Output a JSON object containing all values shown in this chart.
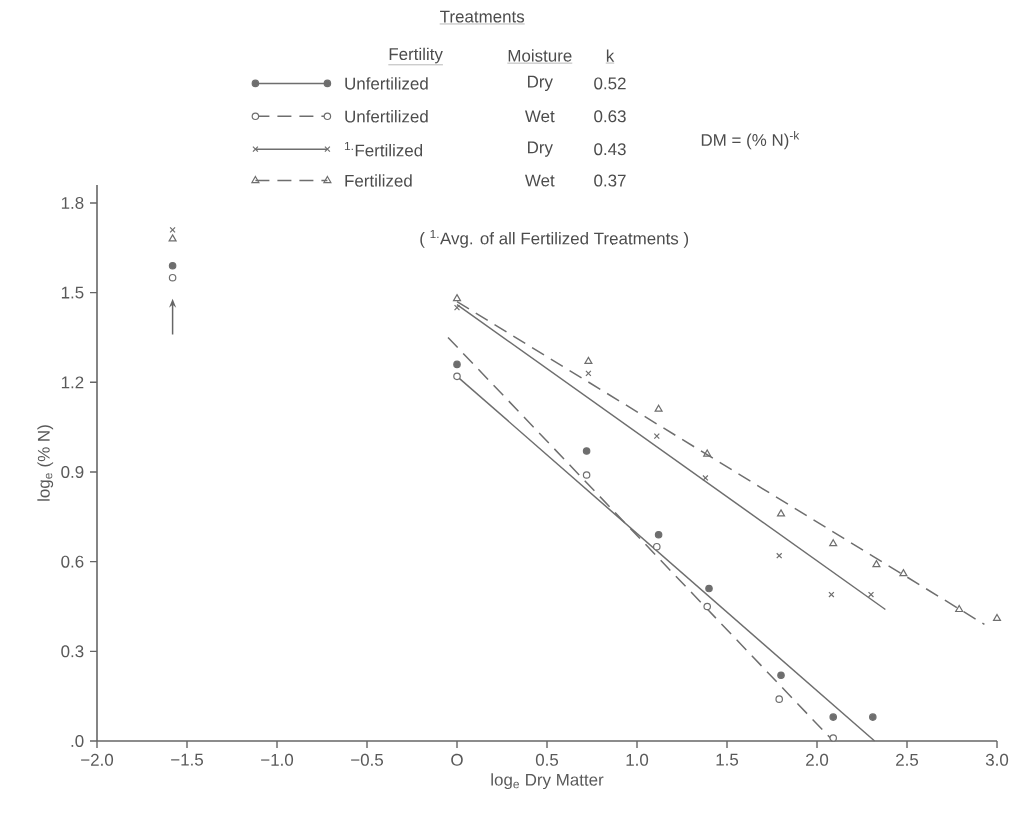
{
  "chart_data": {
    "type": "scatter",
    "legend_title": "Treatments",
    "xlabel": "log$_{e}$ Dry Matter",
    "ylabel": "log$_{e}$ (% N)",
    "annotations": [
      "Fertility",
      "Moisture",
      "k",
      "Dry",
      "Wet",
      "Dry",
      "Wet",
      "0.52",
      "0.63",
      "0.43",
      "0.37",
      "DM = (% N)$^{-k}$",
      "( $^{1.}$Avg. of all Fertilized Treatments )"
    ],
    "xlim": [
      -2.0,
      3.0
    ],
    "ylim": [
      0,
      1.86
    ],
    "xticks": [
      {
        "value": -2.0,
        "label": "−2.0"
      },
      {
        "value": -1.5,
        "label": "−1.5"
      },
      {
        "value": -1.0,
        "label": "−1.0"
      },
      {
        "value": -0.5,
        "label": "−0.5"
      },
      {
        "value": 0,
        "label": "O"
      },
      {
        "value": 0.5,
        "label": "0.5"
      },
      {
        "value": 1.0,
        "label": "1.0"
      },
      {
        "value": 1.5,
        "label": "1.5"
      },
      {
        "value": 2.0,
        "label": "2.0"
      },
      {
        "value": 2.5,
        "label": "2.5"
      },
      {
        "value": 3.0,
        "label": "3.0"
      }
    ],
    "yticks": [
      {
        "value": 0,
        "label": ".0"
      },
      {
        "value": 0.3,
        "label": "0.3"
      },
      {
        "value": 0.6,
        "label": "0.6"
      },
      {
        "value": 0.9,
        "label": "0.9"
      },
      {
        "value": 1.2,
        "label": "1.2"
      },
      {
        "value": 1.5,
        "label": "1.5"
      },
      {
        "value": 1.8,
        "label": "1.8"
      }
    ],
    "grid": false,
    "legend": "top",
    "series": [
      {
        "name": "Unfertilized",
        "marker": "circle",
        "color": "#6e6e6e",
        "x": [
          -1.58,
          0,
          0.72,
          1.12,
          1.4,
          1.8,
          2.09,
          2.31
        ],
        "values": [
          1.59,
          1.26,
          0.97,
          0.69,
          0.51,
          0.22,
          0.08,
          0.08
        ]
      },
      {
        "name": "Unfertilized",
        "marker": "circle",
        "color": "#6e6e6e",
        "x": [
          -1.58,
          0,
          0.72,
          1.11,
          1.39,
          1.79,
          2.09
        ],
        "values": [
          1.55,
          1.22,
          0.89,
          0.65,
          0.45,
          0.14,
          0.01
        ]
      },
      {
        "name": "$^{1.}$Fertilized",
        "marker": "cross",
        "color": "#6e6e6e",
        "x": [
          -1.58,
          0,
          0.73,
          1.11,
          1.38,
          1.79,
          2.08,
          2.3
        ],
        "values": [
          1.71,
          1.45,
          1.23,
          1.02,
          0.88,
          0.62,
          0.49,
          0.49
        ]
      },
      {
        "name": "Fertilized",
        "marker": "triangle",
        "color": "#6e6e6e",
        "x": [
          -1.58,
          0,
          0.73,
          1.12,
          1.39,
          1.8,
          2.09,
          2.33,
          2.48,
          2.79,
          3.0
        ],
        "values": [
          1.68,
          1.48,
          1.27,
          1.11,
          0.96,
          0.76,
          0.66,
          0.59,
          0.56,
          0.44,
          0.41
        ]
      },
      {
        "type": "line",
        "line_style": "solid",
        "color": "#6e6e6e",
        "x": [
          0,
          2.32
        ],
        "values": [
          1.22,
          0.0
        ]
      },
      {
        "type": "line",
        "line_style": "dashed",
        "color": "#6e6e6e",
        "x": [
          -0.05,
          2.09
        ],
        "values": [
          1.35,
          0.0
        ]
      },
      {
        "type": "line",
        "line_style": "solid",
        "color": "#6e6e6e",
        "x": [
          0,
          2.38
        ],
        "values": [
          1.46,
          0.44
        ]
      },
      {
        "type": "line",
        "line_style": "dashed",
        "color": "#6e6e6e",
        "x": [
          0,
          2.93
        ],
        "values": [
          1.47,
          0.39
        ]
      }
    ]
  }
}
